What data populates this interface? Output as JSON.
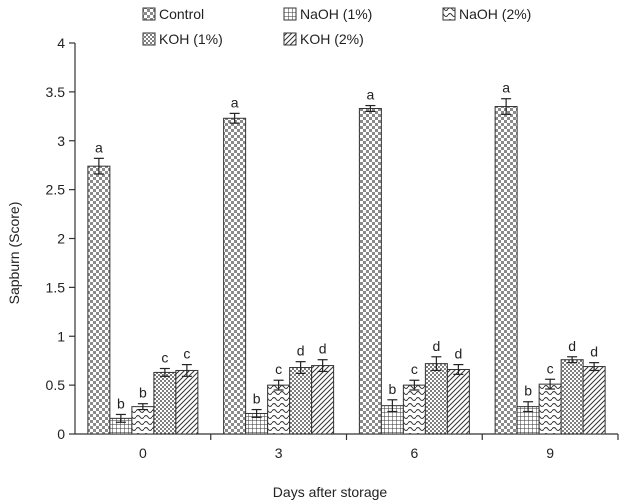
{
  "chart_data": {
    "type": "bar",
    "xlabel": "Days after storage",
    "ylabel": "Sapburn (Score)",
    "categories": [
      "0",
      "3",
      "6",
      "9"
    ],
    "ylim": [
      0,
      4
    ],
    "yticks": [
      "0",
      "0.5",
      "1",
      "1.5",
      "2",
      "2.5",
      "3",
      "3.5",
      "4"
    ],
    "legend_position": "top",
    "series": [
      {
        "name": "Control",
        "pattern": "checker",
        "values": [
          2.74,
          3.23,
          3.33,
          3.35
        ],
        "errors": [
          0.08,
          0.05,
          0.03,
          0.08
        ],
        "labels": [
          "a",
          "a",
          "a",
          "a"
        ]
      },
      {
        "name": "NaOH (1%)",
        "pattern": "grid",
        "values": [
          0.16,
          0.21,
          0.29,
          0.28
        ],
        "errors": [
          0.04,
          0.04,
          0.06,
          0.05
        ],
        "labels": [
          "b",
          "b",
          "b",
          "b"
        ]
      },
      {
        "name": "NaOH (2%)",
        "pattern": "wave",
        "values": [
          0.28,
          0.5,
          0.5,
          0.51
        ],
        "errors": [
          0.03,
          0.05,
          0.05,
          0.05
        ],
        "labels": [
          "b",
          "c",
          "c",
          "c"
        ]
      },
      {
        "name": "KOH (1%)",
        "pattern": "dots",
        "values": [
          0.63,
          0.68,
          0.72,
          0.76
        ],
        "errors": [
          0.04,
          0.06,
          0.07,
          0.03
        ],
        "labels": [
          "c",
          "d",
          "d",
          "d"
        ]
      },
      {
        "name": "KOH (2%)",
        "pattern": "diagonal",
        "values": [
          0.65,
          0.7,
          0.66,
          0.69
        ],
        "errors": [
          0.06,
          0.06,
          0.05,
          0.04
        ],
        "labels": [
          "c",
          "d",
          "d",
          "d"
        ]
      }
    ]
  }
}
